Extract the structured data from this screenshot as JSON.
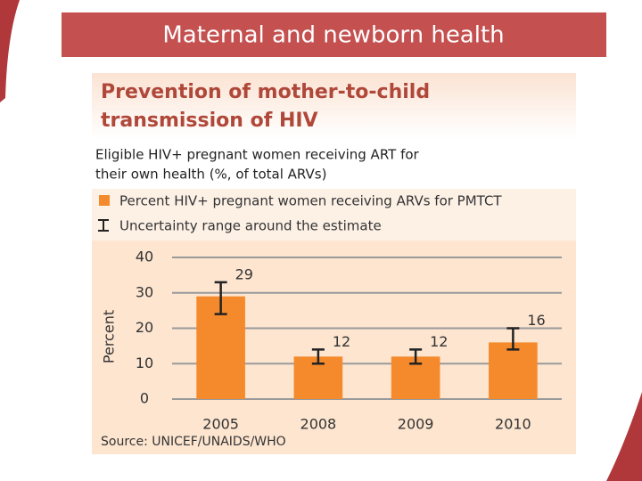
{
  "slide_title": "Maternal and newborn health",
  "chart_data": {
    "type": "bar",
    "title_lines": [
      "Prevention of mother-to-child",
      "transmission of HIV"
    ],
    "subtitle_lines": [
      "Eligible HIV+ pregnant women receiving ART for",
      "their own health (%, of total ARVs)"
    ],
    "categories": [
      "2005",
      "2008",
      "2009",
      "2010"
    ],
    "series": [
      {
        "name": "Percent HIV+ pregnant women receiving ARVs for PMTCT",
        "color": "#f58a2c",
        "values": [
          29,
          12,
          12,
          16
        ]
      }
    ],
    "error_name": "Uncertainty range around the estimate",
    "error_low": [
      24,
      10,
      10,
      14
    ],
    "error_high": [
      33,
      14,
      14,
      20
    ],
    "ylabel": "Percent",
    "ylim": [
      0,
      40
    ],
    "yticks": [
      0,
      10,
      20,
      30,
      40
    ],
    "grid": true,
    "source": "Source: UNICEF/UNAIDS/WHO"
  }
}
